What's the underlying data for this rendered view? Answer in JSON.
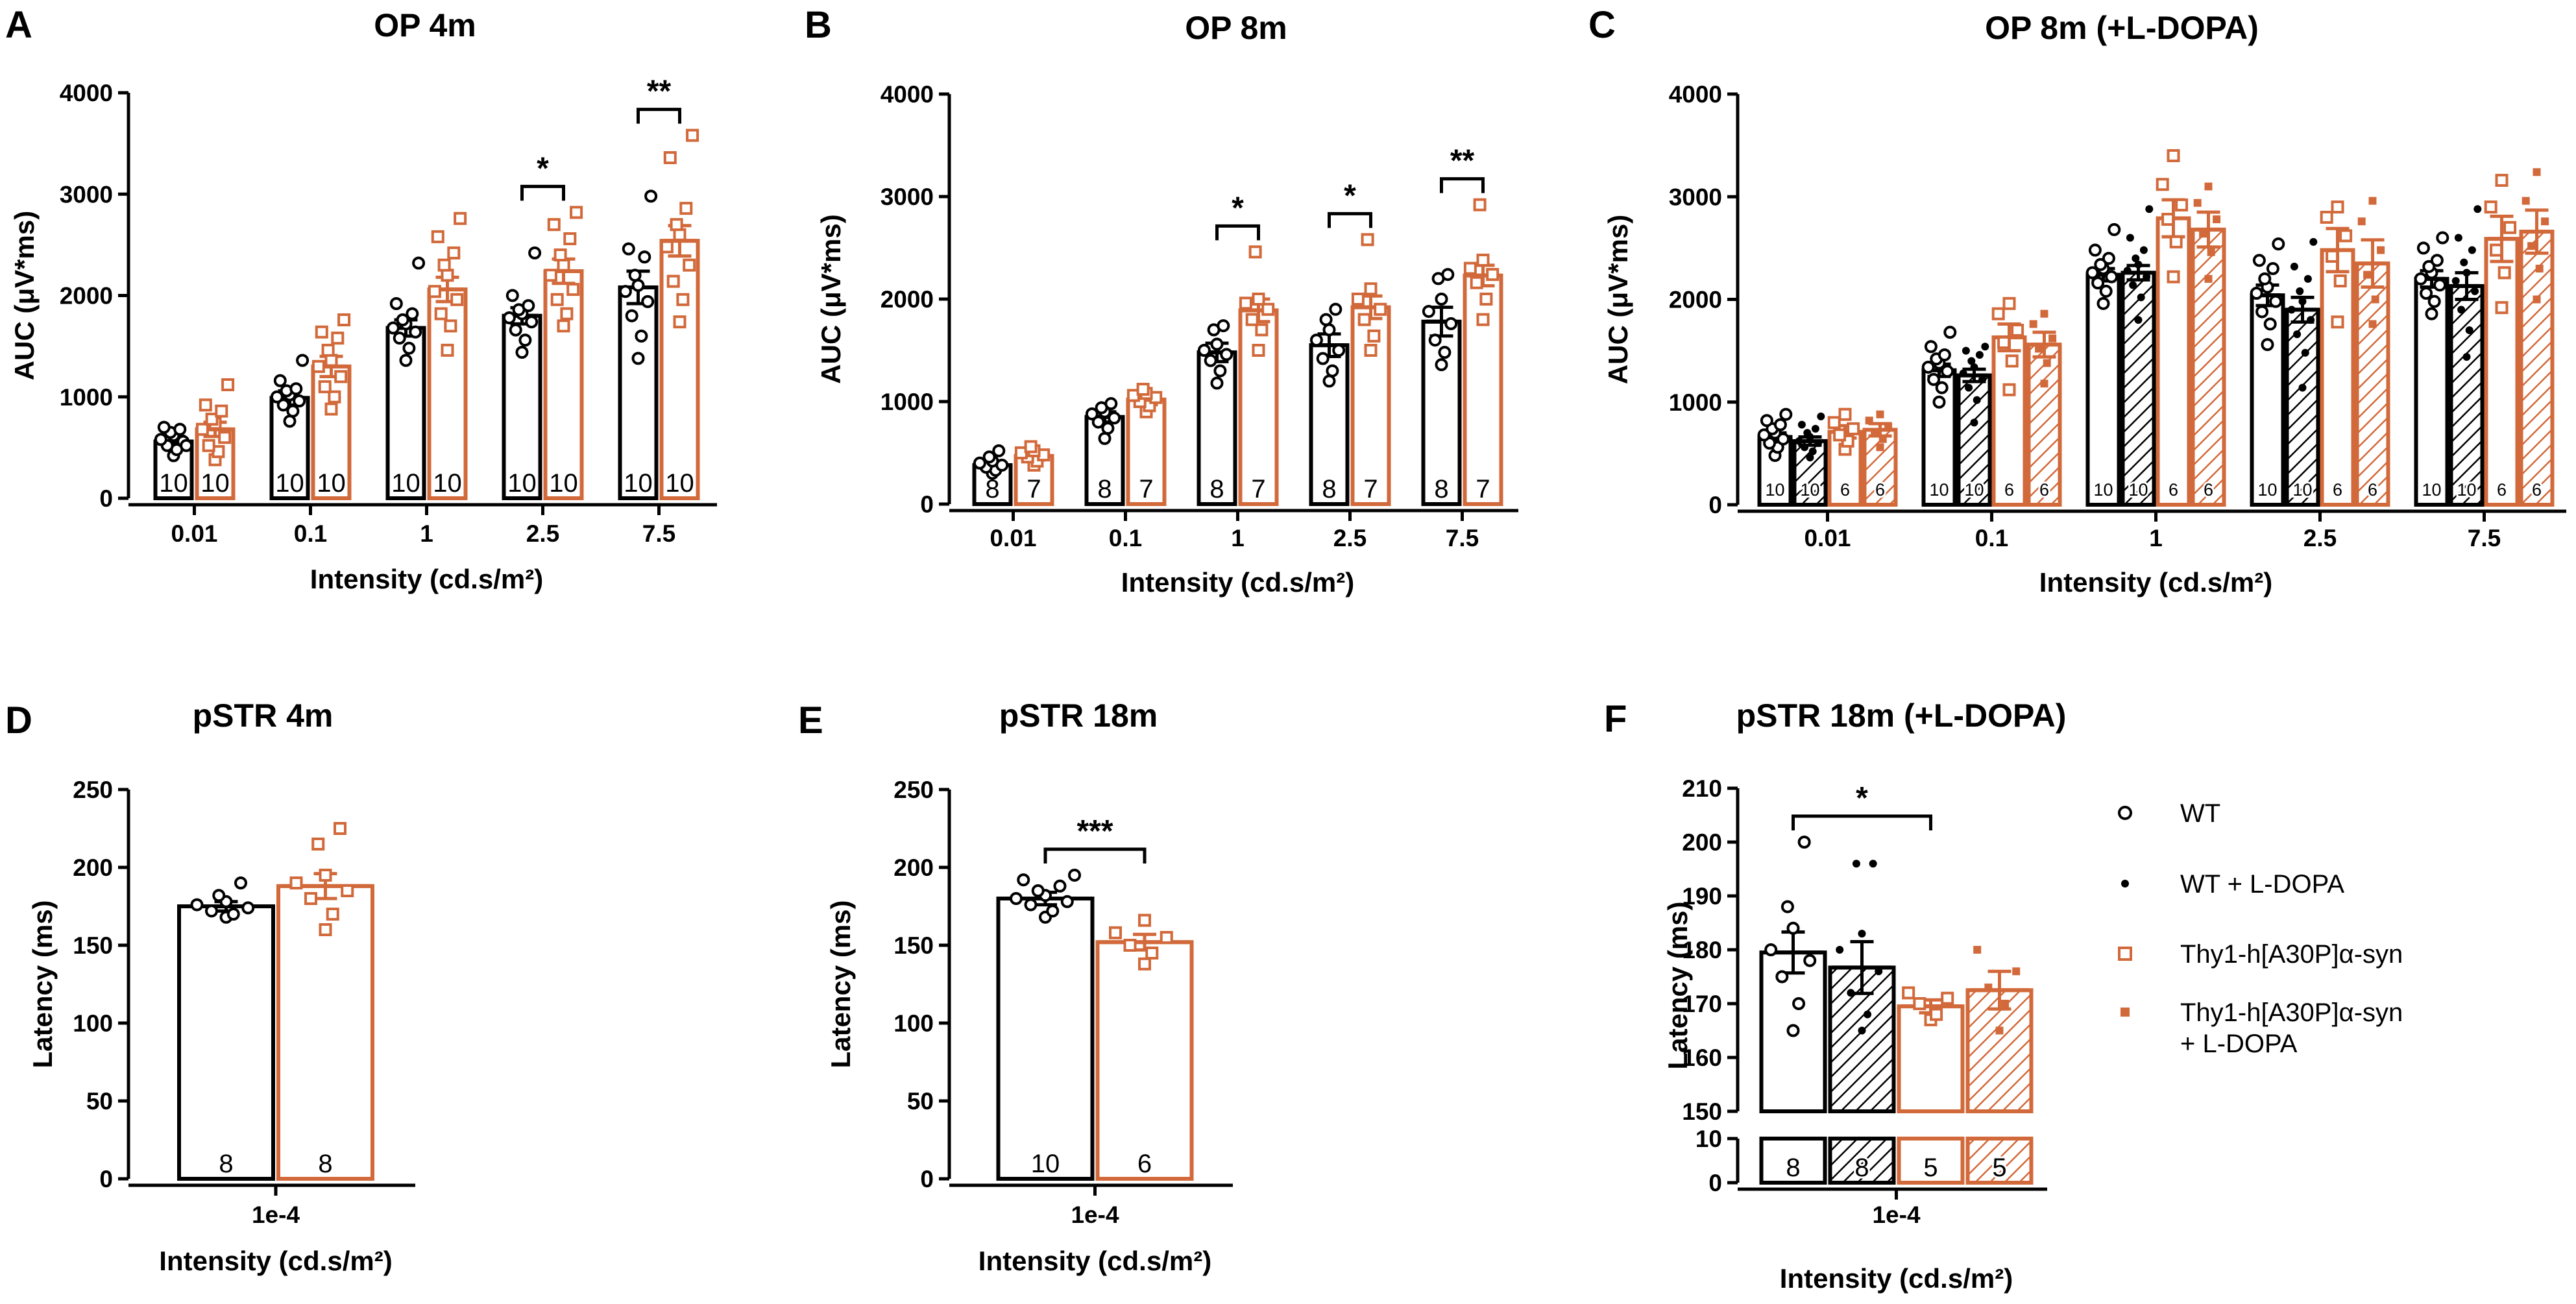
{
  "colors": {
    "wt": "#000000",
    "mut": "#d2693a"
  },
  "legend": [
    {
      "lines": [
        "WT"
      ],
      "key": "wt"
    },
    {
      "lines": [
        "WT + L-DOPA"
      ],
      "key": "wtL"
    },
    {
      "lines": [
        "Thy1-h[A30P]α-syn"
      ],
      "key": "mut"
    },
    {
      "lines": [
        "Thy1-h[A30P]α-syn",
        "+ L-DOPA"
      ],
      "key": "mutL"
    }
  ],
  "chart_data": [
    {
      "id": "A",
      "label": "A",
      "type": "bar",
      "title": "OP 4m",
      "xlabel": "Intensity (cd.s/m²)",
      "ylabel": "AUC (μV*ms)",
      "ylim": [
        0,
        4000
      ],
      "yticks": [
        "0",
        "1000",
        "2000",
        "3000",
        "4000"
      ],
      "categories": [
        "0.01",
        "0.1",
        "1",
        "2.5",
        "7.5"
      ],
      "groups": [
        "wt",
        "mut"
      ],
      "series": [
        {
          "name": "WT",
          "key": "wt",
          "values": [
            560,
            990,
            1680,
            1800,
            2080
          ],
          "errors": [
            50,
            70,
            80,
            80,
            160
          ],
          "n": [
            "10",
            "10",
            "10",
            "10",
            "10"
          ],
          "points": [
            [
              420,
              480,
              520,
              560,
              580,
              620,
              650,
              680,
              700,
              520
            ],
            [
              760,
              860,
              920,
              960,
              1000,
              1020,
              1060,
              1080,
              1160,
              1360
            ],
            [
              1360,
              1480,
              1580,
              1640,
              1680,
              1720,
              1760,
              1820,
              1920,
              2320
            ],
            [
              1440,
              1560,
              1660,
              1740,
              1780,
              1820,
              1860,
              1900,
              2000,
              2420
            ],
            [
              1380,
              1600,
              1800,
              1940,
              2040,
              2100,
              2200,
              2380,
              2460,
              2980
            ]
          ]
        },
        {
          "name": "Thy1-h[A30P]α-syn",
          "key": "mut",
          "values": [
            680,
            1300,
            2060,
            2240,
            2540
          ],
          "errors": [
            70,
            100,
            120,
            120,
            150
          ],
          "n": [
            "10",
            "10",
            "10",
            "10",
            "10"
          ],
          "points": [
            [
              380,
              460,
              520,
              600,
              680,
              740,
              780,
              860,
              920,
              1120
            ],
            [
              880,
              1000,
              1100,
              1200,
              1300,
              1360,
              1460,
              1580,
              1640,
              1760
            ],
            [
              1460,
              1700,
              1820,
              1960,
              2040,
              2200,
              2300,
              2420,
              2580,
              2760
            ],
            [
              1700,
              1820,
              1960,
              2060,
              2200,
              2300,
              2400,
              2560,
              2700,
              2820
            ],
            [
              1740,
              1960,
              2140,
              2300,
              2480,
              2600,
              2700,
              2860,
              3360,
              3580
            ]
          ]
        }
      ],
      "sig": [
        {
          "text": "*",
          "cat": 3
        },
        {
          "text": "**",
          "cat": 4
        }
      ]
    },
    {
      "id": "B",
      "label": "B",
      "type": "bar",
      "title": "OP 8m",
      "xlabel": "Intensity (cd.s/m²)",
      "ylabel": "AUC (μV*ms)",
      "ylim": [
        0,
        4000
      ],
      "yticks": [
        "0",
        "1000",
        "2000",
        "3000",
        "4000"
      ],
      "categories": [
        "0.01",
        "0.1",
        "1",
        "2.5",
        "7.5"
      ],
      "groups": [
        "wt",
        "mut"
      ],
      "series": [
        {
          "name": "WT",
          "key": "wt",
          "values": [
            380,
            850,
            1480,
            1550,
            1780
          ],
          "errors": [
            30,
            50,
            90,
            110,
            140
          ],
          "n": [
            "8",
            "8",
            "8",
            "8",
            "8"
          ],
          "points": [
            [
              300,
              330,
              360,
              380,
              400,
              420,
              460,
              520
            ],
            [
              640,
              740,
              800,
              840,
              880,
              900,
              940,
              980
            ],
            [
              1180,
              1300,
              1400,
              1460,
              1500,
              1560,
              1700,
              1740
            ],
            [
              1200,
              1300,
              1420,
              1500,
              1600,
              1700,
              1800,
              1900
            ],
            [
              1360,
              1480,
              1600,
              1760,
              1880,
              2000,
              2200,
              2240
            ]
          ]
        },
        {
          "name": "Thy1-h[A30P]α-syn",
          "key": "mut",
          "values": [
            470,
            1020,
            1890,
            1920,
            2230
          ],
          "errors": [
            40,
            50,
            110,
            110,
            100
          ],
          "n": [
            "7",
            "7",
            "7",
            "7",
            "7"
          ],
          "points": [
            [
              380,
              420,
              460,
              480,
              500,
              520,
              560
            ],
            [
              900,
              960,
              1000,
              1040,
              1060,
              1080,
              1120
            ],
            [
              1500,
              1700,
              1800,
              1900,
              1960,
              2000,
              2460
            ],
            [
              1500,
              1640,
              1800,
              1900,
              2000,
              2100,
              2580
            ],
            [
              1800,
              2000,
              2160,
              2240,
              2300,
              2380,
              2920
            ]
          ]
        }
      ],
      "sig": [
        {
          "text": "*",
          "cat": 2
        },
        {
          "text": "*",
          "cat": 3
        },
        {
          "text": "**",
          "cat": 4
        }
      ]
    },
    {
      "id": "C",
      "label": "C",
      "type": "bar",
      "title": "OP  8m (+L-DOPA)",
      "xlabel": "Intensity (cd.s/m²)",
      "ylabel": "AUC (μV*ms)",
      "ylim": [
        0,
        4000
      ],
      "yticks": [
        "0",
        "1000",
        "2000",
        "3000",
        "4000"
      ],
      "categories": [
        "0.01",
        "0.1",
        "1",
        "2.5",
        "7.5"
      ],
      "groups": [
        "wt",
        "wtL",
        "mut",
        "mutL"
      ],
      "smallN": true,
      "series": [
        {
          "name": "WT",
          "key": "wt",
          "values": [
            660,
            1310,
            2240,
            2040,
            2200
          ],
          "errors": [
            40,
            60,
            60,
            100,
            80
          ],
          "n": [
            "10",
            "10",
            "10",
            "10",
            "10"
          ],
          "points": [
            [
              480,
              560,
              600,
              640,
              680,
              700,
              740,
              780,
              820,
              880
            ],
            [
              1000,
              1140,
              1220,
              1300,
              1340,
              1380,
              1420,
              1460,
              1540,
              1680
            ],
            [
              1960,
              2080,
              2160,
              2220,
              2260,
              2300,
              2340,
              2400,
              2480,
              2680
            ],
            [
              1560,
              1760,
              1880,
              1980,
              2060,
              2120,
              2200,
              2300,
              2380,
              2540
            ],
            [
              1860,
              1980,
              2060,
              2140,
              2200,
              2260,
              2320,
              2380,
              2500,
              2600
            ]
          ]
        },
        {
          "name": "WT + L-DOPA",
          "key": "wtL",
          "values": [
            620,
            1260,
            2260,
            1900,
            2130
          ],
          "errors": [
            40,
            60,
            70,
            120,
            130
          ],
          "n": [
            "10",
            "10",
            "10",
            "10",
            "10"
          ],
          "points": [
            [
              460,
              520,
              560,
              600,
              620,
              660,
              700,
              740,
              780,
              860
            ],
            [
              800,
              1020,
              1140,
              1220,
              1280,
              1340,
              1400,
              1460,
              1500,
              1540
            ],
            [
              1800,
              2020,
              2140,
              2220,
              2280,
              2340,
              2400,
              2480,
              2600,
              2880
            ],
            [
              1140,
              1480,
              1660,
              1800,
              1900,
              1980,
              2080,
              2200,
              2320,
              2560
            ],
            [
              1440,
              1700,
              1900,
              2080,
              2180,
              2260,
              2360,
              2480,
              2600,
              2880
            ]
          ]
        },
        {
          "name": "Thy1-h[A30P]α-syn",
          "key": "mut",
          "values": [
            710,
            1630,
            2790,
            2480,
            2590
          ],
          "errors": [
            60,
            130,
            180,
            210,
            220
          ],
          "n": [
            "6",
            "6",
            "6",
            "6",
            "6"
          ],
          "points": [
            [
              540,
              620,
              680,
              740,
              800,
              880
            ],
            [
              1120,
              1400,
              1580,
              1700,
              1860,
              1960
            ],
            [
              2220,
              2560,
              2780,
              2920,
              3120,
              3400
            ],
            [
              1780,
              2180,
              2420,
              2620,
              2800,
              2900
            ],
            [
              1920,
              2260,
              2480,
              2700,
              2900,
              3160
            ]
          ]
        },
        {
          "name": "Thy1-h[A30P]α-syn + L-DOPA",
          "key": "mutL",
          "values": [
            730,
            1560,
            2680,
            2350,
            2660
          ],
          "errors": [
            60,
            120,
            170,
            230,
            210
          ],
          "n": [
            "6",
            "6",
            "6",
            "6",
            "6"
          ],
          "points": [
            [
              560,
              640,
              700,
              760,
              820,
              880
            ],
            [
              1180,
              1380,
              1520,
              1620,
              1760,
              1860
            ],
            [
              2200,
              2460,
              2640,
              2780,
              2940,
              3100
            ],
            [
              1760,
              2000,
              2240,
              2480,
              2760,
              2960
            ],
            [
              2000,
              2300,
              2520,
              2760,
              2960,
              3240
            ]
          ]
        }
      ],
      "sig": []
    },
    {
      "id": "D",
      "label": "D",
      "type": "bar",
      "title": "pSTR 4m",
      "xlabel": "Intensity (cd.s/m²)",
      "ylabel": "Latency (ms)",
      "ylim": [
        0,
        250
      ],
      "yticks": [
        "0",
        "50",
        "100",
        "150",
        "200",
        "250"
      ],
      "categories": [
        "1e-4"
      ],
      "groups": [
        "wt",
        "mut"
      ],
      "series": [
        {
          "name": "WT",
          "key": "wt",
          "values": [
            175
          ],
          "errors": [
            3
          ],
          "n": [
            "8"
          ],
          "points": [
            [
              168,
              170,
              172,
              174,
              176,
              178,
              182,
              190
            ]
          ]
        },
        {
          "name": "Thy1-h[A30P]α-syn",
          "key": "mut",
          "values": [
            188
          ],
          "errors": [
            8
          ],
          "n": [
            "8"
          ],
          "points": [
            [
              160,
              170,
              180,
              185,
              190,
              195,
              215,
              225
            ]
          ]
        }
      ],
      "sig": []
    },
    {
      "id": "E",
      "label": "E",
      "type": "bar",
      "title": "pSTR 18m",
      "xlabel": "Intensity (cd.s/m²)",
      "ylabel": "Latency (ms)",
      "ylim": [
        0,
        250
      ],
      "yticks": [
        "0",
        "50",
        "100",
        "150",
        "200",
        "250"
      ],
      "categories": [
        "1e-4"
      ],
      "groups": [
        "wt",
        "mut"
      ],
      "series": [
        {
          "name": "WT",
          "key": "wt",
          "values": [
            180
          ],
          "errors": [
            4
          ],
          "n": [
            "10"
          ],
          "points": [
            [
              168,
              172,
              176,
              178,
              180,
              182,
              185,
              188,
              192,
              195
            ]
          ]
        },
        {
          "name": "Thy1-h[A30P]α-syn",
          "key": "mut",
          "values": [
            152
          ],
          "errors": [
            5
          ],
          "n": [
            "6"
          ],
          "points": [
            [
              138,
              145,
              150,
              155,
              158,
              166
            ]
          ]
        }
      ],
      "sig": [
        {
          "text": "***",
          "from": 0,
          "to": 1
        }
      ]
    },
    {
      "id": "F",
      "label": "F",
      "type": "bar",
      "title": "pSTR 18m (+L-DOPA)",
      "xlabel": "Intensity (cd.s/m²)",
      "ylabel": "Latency (ms)",
      "ylim": [
        150,
        210
      ],
      "yticks": [
        "150",
        "160",
        "170",
        "180",
        "190",
        "200",
        "210"
      ],
      "ylimLow": [
        0,
        10
      ],
      "yticksLow": [
        "0",
        "10"
      ],
      "categories": [
        "1e-4"
      ],
      "groups": [
        "wt",
        "wtL",
        "mut",
        "mutL"
      ],
      "series": [
        {
          "name": "WT",
          "key": "wt",
          "values": [
            179.5
          ],
          "errors": [
            3.8
          ],
          "n": [
            "8"
          ],
          "points": [
            [
              165,
              170,
              175,
              178,
              180,
              184,
              188,
              200
            ]
          ]
        },
        {
          "name": "WT + L-DOPA",
          "key": "wtL",
          "values": [
            176.7
          ],
          "errors": [
            4.8
          ],
          "n": [
            "8"
          ],
          "points": [
            [
              165,
              168,
              172,
              176,
              180,
              183,
              196,
              196
            ]
          ]
        },
        {
          "name": "Thy1-h[A30P]α-syn",
          "key": "mut",
          "values": [
            169.5
          ],
          "errors": [
            1.2
          ],
          "n": [
            "5"
          ],
          "points": [
            [
              167,
              168,
              170,
              171,
              172
            ]
          ]
        },
        {
          "name": "Thy1-h[A30P]α-syn + L-DOPA",
          "key": "mutL",
          "values": [
            172.5
          ],
          "errors": [
            3.5
          ],
          "n": [
            "5"
          ],
          "points": [
            [
              165,
              170,
              173,
              176,
              180
            ]
          ]
        }
      ],
      "sig": [
        {
          "text": "*",
          "from": 0,
          "to": 2
        }
      ]
    }
  ]
}
